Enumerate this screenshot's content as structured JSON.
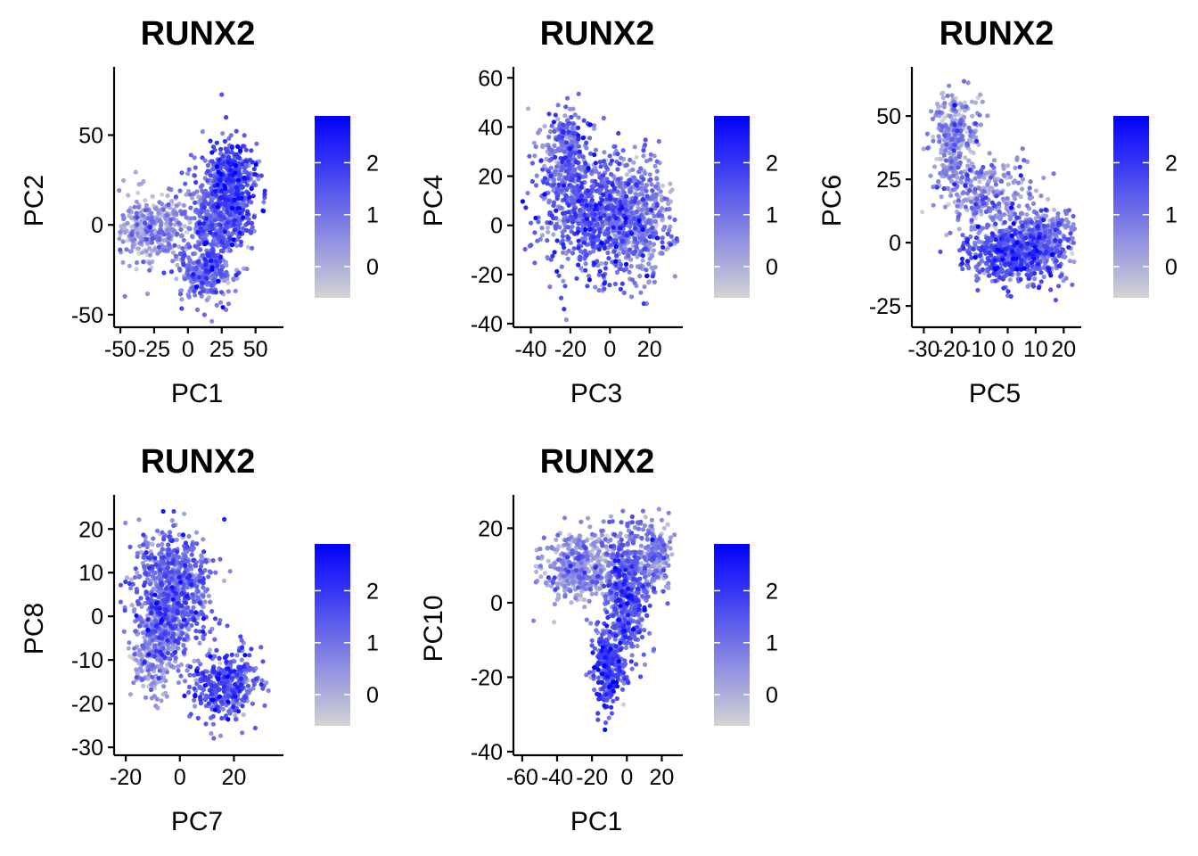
{
  "colors": {
    "low": "#d3d3d3",
    "high": "#0000ff"
  },
  "chart_data": [
    {
      "type": "scatter",
      "title": "RUNX2",
      "xlabel": "PC1",
      "ylabel": "PC2",
      "xlim": [
        -52,
        68
      ],
      "ylim": [
        -55,
        86
      ],
      "xticks": [
        -50,
        -25,
        0,
        25,
        50
      ],
      "xtick_labels": [
        "-50",
        "-25",
        "0",
        "25",
        "50"
      ],
      "yticks": [
        -50,
        0,
        50
      ],
      "ytick_labels": [
        "-50",
        "0",
        "50"
      ],
      "legend": {
        "position": "right",
        "ticks": [
          0,
          1,
          2
        ],
        "tick_labels": [
          "0",
          "1",
          "2"
        ],
        "min": -0.6,
        "max": 2.9
      },
      "color_by": "RUNX2 expression",
      "regions": [
        {
          "cx": -25,
          "cy": -2,
          "sx": 14,
          "sy": 9,
          "weight": 0.25,
          "expr": 0.15
        },
        {
          "cx": 18,
          "cy": 0,
          "sx": 11,
          "sy": 18,
          "weight": 0.3,
          "expr": 1.0
        },
        {
          "cx": 33,
          "cy": 20,
          "sx": 9,
          "sy": 14,
          "weight": 0.3,
          "expr": 1.4
        },
        {
          "cx": 10,
          "cy": -28,
          "sx": 9,
          "sy": 6,
          "weight": 0.15,
          "expr": 0.7
        }
      ],
      "n_points": 1500
    },
    {
      "type": "scatter",
      "title": "RUNX2",
      "xlabel": "PC3",
      "ylabel": "PC4",
      "xlim": [
        -47,
        35
      ],
      "ylim": [
        -40,
        63
      ],
      "xticks": [
        -40,
        -20,
        0,
        20
      ],
      "xtick_labels": [
        "-40",
        "-20",
        "0",
        "20"
      ],
      "yticks": [
        -40,
        -20,
        0,
        20,
        40,
        60
      ],
      "ytick_labels": [
        "-40",
        "-20",
        "0",
        "20",
        "40",
        "60"
      ],
      "legend": {
        "position": "right",
        "ticks": [
          0,
          1,
          2
        ],
        "tick_labels": [
          "0",
          "1",
          "2"
        ],
        "min": -0.6,
        "max": 2.9
      },
      "color_by": "RUNX2 expression",
      "regions": [
        {
          "cx": -8,
          "cy": 5,
          "sx": 13,
          "sy": 13,
          "weight": 0.5,
          "expr": 1.1
        },
        {
          "cx": 15,
          "cy": 2,
          "sx": 9,
          "sy": 11,
          "weight": 0.3,
          "expr": 0.6
        },
        {
          "cx": -22,
          "cy": 28,
          "sx": 6,
          "sy": 9,
          "weight": 0.2,
          "expr": 0.8
        }
      ],
      "n_points": 1500
    },
    {
      "type": "scatter",
      "title": "RUNX2",
      "xlabel": "PC5",
      "ylabel": "PC6",
      "xlim": [
        -33,
        25
      ],
      "ylim": [
        -32,
        68
      ],
      "xticks": [
        -30,
        -20,
        -10,
        0,
        10,
        20
      ],
      "xtick_labels": [
        "-30",
        "-20",
        "-10",
        "0",
        "10",
        "20"
      ],
      "yticks": [
        -25,
        0,
        25,
        50
      ],
      "ytick_labels": [
        "-25",
        "0",
        "25",
        "50"
      ],
      "legend": {
        "position": "right",
        "ticks": [
          0,
          1,
          2
        ],
        "tick_labels": [
          "0",
          "1",
          "2"
        ],
        "min": -0.6,
        "max": 2.9
      },
      "color_by": "RUNX2 expression",
      "regions": [
        {
          "cx": -19,
          "cy": 40,
          "sx": 4,
          "sy": 10,
          "weight": 0.22,
          "expr": 0.25
        },
        {
          "cx": -6,
          "cy": 18,
          "sx": 8,
          "sy": 8,
          "weight": 0.2,
          "expr": 0.4
        },
        {
          "cx": 2,
          "cy": -4,
          "sx": 8,
          "sy": 6,
          "weight": 0.4,
          "expr": 1.2
        },
        {
          "cx": 14,
          "cy": 2,
          "sx": 5,
          "sy": 6,
          "weight": 0.18,
          "expr": 0.6
        }
      ],
      "n_points": 1500
    },
    {
      "type": "scatter",
      "title": "RUNX2",
      "xlabel": "PC7",
      "ylabel": "PC8",
      "xlim": [
        -23,
        37
      ],
      "ylim": [
        -31,
        27
      ],
      "xticks": [
        -20,
        0,
        20
      ],
      "xtick_labels": [
        "-20",
        "0",
        "20"
      ],
      "yticks": [
        -30,
        -20,
        -10,
        0,
        10,
        20
      ],
      "ytick_labels": [
        "-30",
        "-20",
        "-10",
        "0",
        "10",
        "20"
      ],
      "legend": {
        "position": "right",
        "ticks": [
          0,
          1,
          2
        ],
        "tick_labels": [
          "0",
          "1",
          "2"
        ],
        "min": -0.6,
        "max": 2.9
      },
      "color_by": "RUNX2 expression",
      "regions": [
        {
          "cx": -3,
          "cy": 5,
          "sx": 7,
          "sy": 7,
          "weight": 0.55,
          "expr": 0.9
        },
        {
          "cx": -9,
          "cy": -8,
          "sx": 4,
          "sy": 5,
          "weight": 0.2,
          "expr": 0.3
        },
        {
          "cx": 17,
          "cy": -16,
          "sx": 6,
          "sy": 4,
          "weight": 0.25,
          "expr": 1.2
        }
      ],
      "n_points": 1500
    },
    {
      "type": "scatter",
      "title": "RUNX2",
      "xlabel": "PC1",
      "ylabel": "PC10",
      "xlim": [
        -63,
        30
      ],
      "ylim": [
        -40,
        28
      ],
      "xticks": [
        -60,
        -40,
        -20,
        0,
        20
      ],
      "xtick_labels": [
        "-60",
        "-40",
        "-20",
        "0",
        "20"
      ],
      "yticks": [
        -40,
        -20,
        0,
        20
      ],
      "ytick_labels": [
        "-40",
        "-20",
        "0",
        "20"
      ],
      "legend": {
        "position": "right",
        "ticks": [
          0,
          1,
          2
        ],
        "tick_labels": [
          "0",
          "1",
          "2"
        ],
        "min": -0.6,
        "max": 2.9
      },
      "color_by": "RUNX2 expression",
      "regions": [
        {
          "cx": -28,
          "cy": 9,
          "sx": 10,
          "sy": 5,
          "weight": 0.3,
          "expr": 0.2
        },
        {
          "cx": 0,
          "cy": 3,
          "sx": 6,
          "sy": 9,
          "weight": 0.35,
          "expr": 1.1
        },
        {
          "cx": -11,
          "cy": -17,
          "sx": 4,
          "sy": 5,
          "weight": 0.2,
          "expr": 1.3
        },
        {
          "cx": 16,
          "cy": 13,
          "sx": 5,
          "sy": 5,
          "weight": 0.15,
          "expr": 0.4
        }
      ],
      "n_points": 1500
    }
  ]
}
